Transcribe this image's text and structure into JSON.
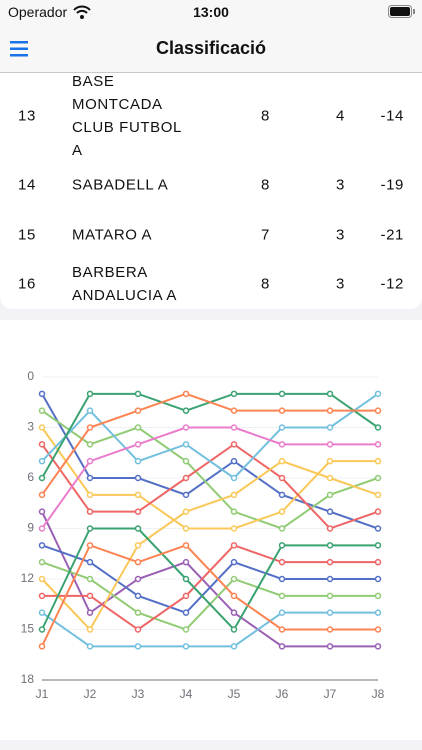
{
  "status_bar": {
    "carrier": "Operador",
    "time": "13:00"
  },
  "nav": {
    "title": "Classificació"
  },
  "table": {
    "rows": [
      [
        13,
        "BASE MONTCADA CLUB FUTBOL A",
        8,
        4,
        -14
      ],
      [
        14,
        "SABADELL A",
        8,
        3,
        -19
      ],
      [
        15,
        "MATARO A",
        7,
        3,
        -21
      ],
      [
        16,
        "BARBERA ANDALUCIA A",
        8,
        3,
        -12
      ]
    ]
  },
  "chart_data": {
    "type": "line",
    "y_inverted": true,
    "categories": [
      "J1",
      "J2",
      "J3",
      "J4",
      "J5",
      "J6",
      "J7",
      "J8"
    ],
    "ylim": [
      0,
      18
    ],
    "yticks": [
      0,
      3,
      6,
      9,
      12,
      15,
      18
    ],
    "grid": true,
    "series": [
      {
        "color": "#5470c6",
        "values": [
          1,
          6,
          6,
          7,
          5,
          7,
          8,
          9
        ]
      },
      {
        "color": "#91cc75",
        "values": [
          2,
          4,
          3,
          5,
          8,
          9,
          7,
          6
        ]
      },
      {
        "color": "#fac858",
        "values": [
          3,
          7,
          7,
          9,
          9,
          8,
          5,
          5
        ]
      },
      {
        "color": "#ee6666",
        "values": [
          4,
          8,
          8,
          6,
          4,
          6,
          9,
          8
        ]
      },
      {
        "color": "#73c0de",
        "values": [
          5,
          2,
          5,
          4,
          6,
          3,
          3,
          1
        ]
      },
      {
        "color": "#3ba272",
        "values": [
          6,
          1,
          1,
          2,
          1,
          1,
          1,
          3
        ]
      },
      {
        "color": "#fc8452",
        "values": [
          7,
          3,
          2,
          1,
          2,
          2,
          2,
          2
        ]
      },
      {
        "color": "#9a60b4",
        "values": [
          8,
          14,
          12,
          11,
          14,
          16,
          16,
          16
        ]
      },
      {
        "color": "#ea7ccc",
        "values": [
          9,
          5,
          4,
          3,
          3,
          4,
          4,
          4
        ]
      },
      {
        "color": "#5470c6",
        "values": [
          10,
          11,
          13,
          14,
          11,
          12,
          12,
          12
        ]
      },
      {
        "color": "#91cc75",
        "values": [
          11,
          12,
          14,
          15,
          12,
          13,
          13,
          13
        ]
      },
      {
        "color": "#fac858",
        "values": [
          12,
          15,
          10,
          8,
          7,
          5,
          6,
          7
        ]
      },
      {
        "color": "#ee6666",
        "values": [
          13,
          13,
          15,
          13,
          10,
          11,
          11,
          11
        ]
      },
      {
        "color": "#73c0de",
        "values": [
          14,
          16,
          16,
          16,
          16,
          14,
          14,
          14
        ]
      },
      {
        "color": "#3ba272",
        "values": [
          15,
          9,
          9,
          12,
          15,
          10,
          10,
          10
        ]
      },
      {
        "color": "#fc8452",
        "values": [
          16,
          10,
          11,
          10,
          13,
          15,
          15,
          15
        ]
      }
    ]
  }
}
